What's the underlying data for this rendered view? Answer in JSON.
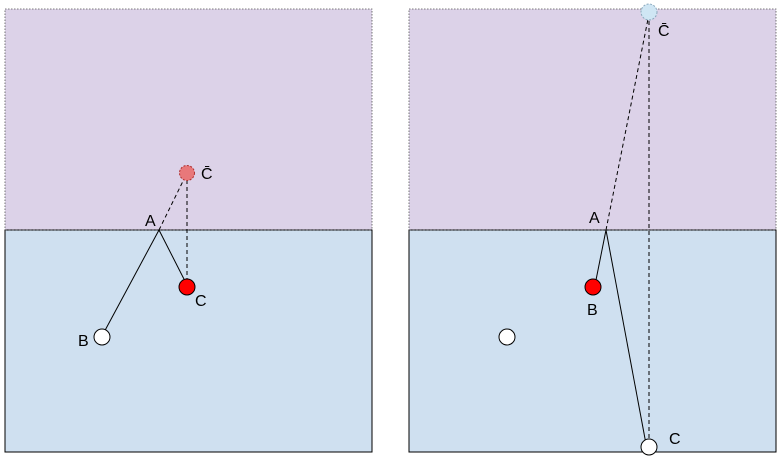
{
  "colors": {
    "upper_region": "#dcd2e8",
    "lower_region": "#cfe0f0",
    "red_ball": "#ff0000",
    "ghost_red_ball": "#e8787a",
    "ghost_light_ball": "#cfe6f4",
    "white_ball": "#ffffff",
    "line": "#000000"
  },
  "left_panel": {
    "labels": {
      "A": "A",
      "B": "B",
      "C": "C",
      "C_reflected": "C̄"
    }
  },
  "right_panel": {
    "labels": {
      "A": "A",
      "B": "B",
      "C": "C",
      "C_reflected": "C̄"
    }
  }
}
